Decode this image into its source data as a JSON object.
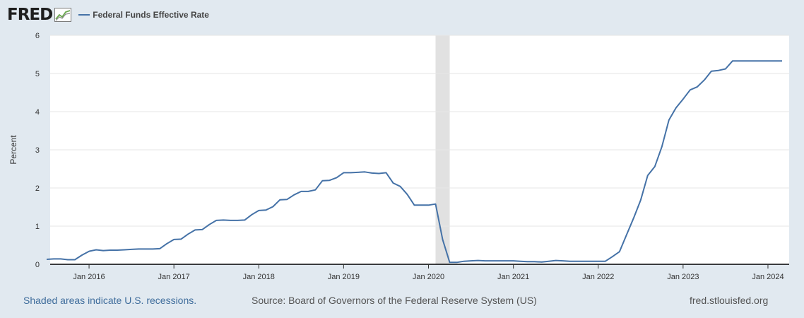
{
  "brand": {
    "logo_text": "FRED"
  },
  "colors": {
    "series": "#4572a7",
    "recession": "#e1e1e1",
    "plot_bg": "#ffffff",
    "page_bg": "#e1e9f0"
  },
  "footer": {
    "recession_note": "Shaded areas indicate U.S. recessions.",
    "source": "Source: Board of Governors of the Federal Reserve System (US)",
    "site": "fred.stlouisfed.org"
  },
  "chart_data": {
    "type": "line",
    "title": "",
    "xlabel": "",
    "ylabel": "Percent",
    "ylim": [
      0,
      6
    ],
    "yticks": [
      0,
      1,
      2,
      3,
      4,
      5,
      6
    ],
    "grid": true,
    "legend_position": "top-left",
    "x_ticks": [
      "Jan 2016",
      "Jan 2017",
      "Jan 2018",
      "Jan 2019",
      "Jan 2020",
      "Jan 2021",
      "Jan 2022",
      "Jan 2023",
      "Jan 2024"
    ],
    "recessions": [
      {
        "start": "2020-02",
        "end": "2020-04"
      }
    ],
    "series": [
      {
        "name": "Federal Funds Effective Rate",
        "x": [
          "2015-07",
          "2015-08",
          "2015-09",
          "2015-10",
          "2015-11",
          "2015-12",
          "2016-01",
          "2016-02",
          "2016-03",
          "2016-04",
          "2016-05",
          "2016-06",
          "2016-07",
          "2016-08",
          "2016-09",
          "2016-10",
          "2016-11",
          "2016-12",
          "2017-01",
          "2017-02",
          "2017-03",
          "2017-04",
          "2017-05",
          "2017-06",
          "2017-07",
          "2017-08",
          "2017-09",
          "2017-10",
          "2017-11",
          "2017-12",
          "2018-01",
          "2018-02",
          "2018-03",
          "2018-04",
          "2018-05",
          "2018-06",
          "2018-07",
          "2018-08",
          "2018-09",
          "2018-10",
          "2018-11",
          "2018-12",
          "2019-01",
          "2019-02",
          "2019-03",
          "2019-04",
          "2019-05",
          "2019-06",
          "2019-07",
          "2019-08",
          "2019-09",
          "2019-10",
          "2019-11",
          "2019-12",
          "2020-01",
          "2020-02",
          "2020-03",
          "2020-04",
          "2020-05",
          "2020-06",
          "2020-07",
          "2020-08",
          "2020-09",
          "2020-10",
          "2020-11",
          "2020-12",
          "2021-01",
          "2021-02",
          "2021-03",
          "2021-04",
          "2021-05",
          "2021-06",
          "2021-07",
          "2021-08",
          "2021-09",
          "2021-10",
          "2021-11",
          "2021-12",
          "2022-01",
          "2022-02",
          "2022-03",
          "2022-04",
          "2022-05",
          "2022-06",
          "2022-07",
          "2022-08",
          "2022-09",
          "2022-10",
          "2022-11",
          "2022-12",
          "2023-01",
          "2023-02",
          "2023-03",
          "2023-04",
          "2023-05",
          "2023-06",
          "2023-07",
          "2023-08",
          "2023-09",
          "2023-10",
          "2023-11",
          "2023-12",
          "2024-01",
          "2024-02",
          "2024-03"
        ],
        "values": [
          0.13,
          0.14,
          0.14,
          0.12,
          0.12,
          0.24,
          0.34,
          0.38,
          0.36,
          0.37,
          0.37,
          0.38,
          0.39,
          0.4,
          0.4,
          0.4,
          0.41,
          0.54,
          0.65,
          0.66,
          0.79,
          0.9,
          0.91,
          1.04,
          1.15,
          1.16,
          1.15,
          1.15,
          1.16,
          1.3,
          1.41,
          1.42,
          1.51,
          1.69,
          1.7,
          1.82,
          1.91,
          1.91,
          1.95,
          2.19,
          2.2,
          2.27,
          2.4,
          2.4,
          2.41,
          2.42,
          2.39,
          2.38,
          2.4,
          2.13,
          2.04,
          1.83,
          1.55,
          1.55,
          1.55,
          1.58,
          0.65,
          0.05,
          0.05,
          0.08,
          0.09,
          0.1,
          0.09,
          0.09,
          0.09,
          0.09,
          0.09,
          0.08,
          0.07,
          0.07,
          0.06,
          0.08,
          0.1,
          0.09,
          0.08,
          0.08,
          0.08,
          0.08,
          0.08,
          0.08,
          0.2,
          0.33,
          0.77,
          1.21,
          1.68,
          2.33,
          2.56,
          3.08,
          3.78,
          4.1,
          4.33,
          4.57,
          4.65,
          4.83,
          5.06,
          5.08,
          5.12,
          5.33,
          5.33,
          5.33,
          5.33,
          5.33,
          5.33,
          5.33,
          5.33
        ]
      }
    ]
  }
}
